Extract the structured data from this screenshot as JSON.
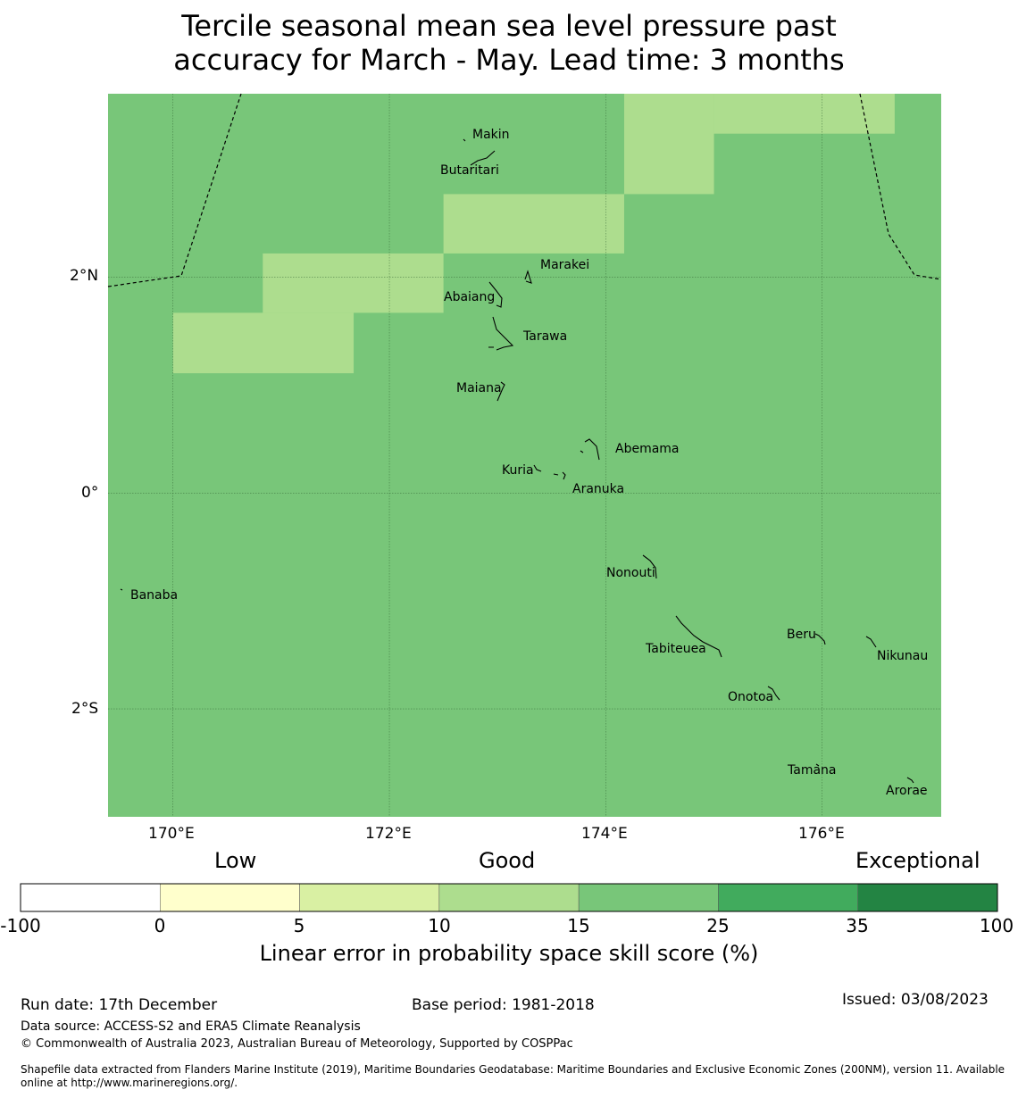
{
  "title": {
    "line1": "Tercile seasonal mean sea level pressure past",
    "line2": "accuracy for March - May. Lead time: 3 months"
  },
  "map": {
    "lon_range": [
      169.4,
      177.1
    ],
    "lat_range": [
      -3.0,
      3.7
    ],
    "background_color": "#78c679",
    "highlight_color": "#addd8e",
    "highlight_cells": [
      {
        "lon": [
          174.17,
          175.0
        ],
        "lat": [
          2.77,
          3.7
        ]
      },
      {
        "lon": [
          175.0,
          176.67
        ],
        "lat": [
          3.33,
          3.7
        ]
      },
      {
        "lon": [
          172.5,
          174.17
        ],
        "lat": [
          2.22,
          2.77
        ]
      },
      {
        "lon": [
          170.83,
          172.5
        ],
        "lat": [
          1.67,
          2.22
        ]
      },
      {
        "lon": [
          170.0,
          171.67
        ],
        "lat": [
          1.11,
          1.67
        ]
      }
    ],
    "lat_labels": [
      {
        "value": 2,
        "text": "2°N"
      },
      {
        "value": 0,
        "text": "0°"
      },
      {
        "value": -2,
        "text": "2°S"
      }
    ],
    "lon_labels": [
      {
        "value": 170,
        "text": "170°E"
      },
      {
        "value": 172,
        "text": "172°E"
      },
      {
        "value": 174,
        "text": "174°E"
      },
      {
        "value": 176,
        "text": "176°E"
      }
    ],
    "islands": [
      {
        "name": "Makin",
        "lon": 172.99,
        "lat": 3.33
      },
      {
        "name": "Butaritari",
        "lon": 172.77,
        "lat": 3.03
      },
      {
        "name": "Marakei",
        "lon": 173.29,
        "lat": 2.01
      },
      {
        "name": "Abaiang",
        "lon": 172.99,
        "lat": 1.85
      },
      {
        "name": "Tarawa",
        "lon": 173.02,
        "lat": 1.43
      },
      {
        "name": "Maiana",
        "lon": 173.03,
        "lat": 0.94
      },
      {
        "name": "Abemama",
        "lon": 173.88,
        "lat": 0.4
      },
      {
        "name": "Kuria",
        "lon": 173.41,
        "lat": 0.23
      },
      {
        "name": "Aranuka",
        "lon": 173.62,
        "lat": 0.15
      },
      {
        "name": "Nonouti",
        "lon": 174.42,
        "lat": -0.66
      },
      {
        "name": "Banaba",
        "lon": 169.54,
        "lat": -0.89
      },
      {
        "name": "Tabiteuea",
        "lon": 174.85,
        "lat": -1.35
      },
      {
        "name": "Beru",
        "lon": 176.0,
        "lat": -1.33
      },
      {
        "name": "Nikunau",
        "lon": 176.45,
        "lat": -1.37
      },
      {
        "name": "Onotoa",
        "lon": 175.56,
        "lat": -1.8
      },
      {
        "name": "Tamana",
        "lon": 175.98,
        "lat": -2.5
      },
      {
        "name": "Arorae",
        "lon": 176.82,
        "lat": -2.64
      }
    ]
  },
  "legend": {
    "category_labels": [
      "Low",
      "Good",
      "Exceptional"
    ],
    "bins": [
      {
        "from": -100,
        "to": 0,
        "color": "#ffffff"
      },
      {
        "from": 0,
        "to": 5,
        "color": "#ffffcc"
      },
      {
        "from": 5,
        "to": 10,
        "color": "#d9f0a3"
      },
      {
        "from": 10,
        "to": 15,
        "color": "#addd8e"
      },
      {
        "from": 15,
        "to": 25,
        "color": "#78c679"
      },
      {
        "from": 25,
        "to": 35,
        "color": "#41ab5d"
      },
      {
        "from": 35,
        "to": 100,
        "color": "#238443"
      }
    ],
    "ticks": [
      "-100",
      "0",
      "5",
      "10",
      "15",
      "25",
      "35",
      "100"
    ],
    "title": "Linear error in probability space skill score (%)"
  },
  "footer": {
    "run_date": "Run date: 17th December",
    "base_period": "Base period: 1981-2018",
    "issued": "Issued: 03/08/2023",
    "data_source": "Data source: ACCESS-S2 and ERA5 Climate Reanalysis",
    "copyright": "© Commonwealth of Australia 2023, Australian Bureau of Meteorology, Supported by COSPPac",
    "shapefile_line1": "Shapefile data extracted from Flanders Marine Institute (2019), Maritime Boundaries Geodatabase: Maritime Boundaries and Exclusive Economic Zones (200NM), version 11. Available",
    "shapefile_line2": "online at http://www.marineregions.org/."
  }
}
